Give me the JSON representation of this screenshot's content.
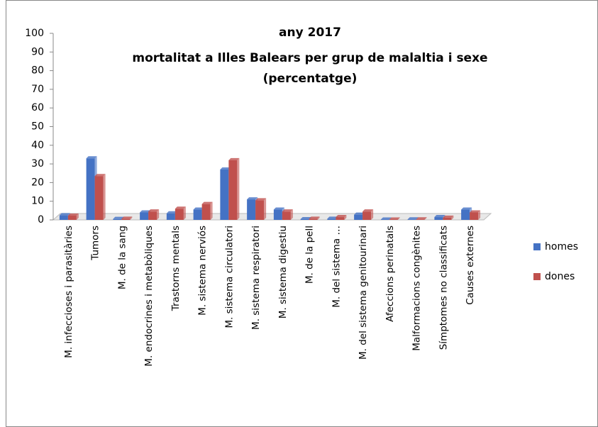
{
  "chart_data": {
    "type": "bar",
    "title": [
      "any 2017",
      "mortalitat a Illes Balears per grup de malaltia i sexe",
      "(percentatge)"
    ],
    "categories": [
      "M. infeccioses i parasitàries",
      "Tumors",
      "M. de la sang",
      "M. endocrines i metabòliques",
      "Trastorns  mentals",
      "M. sistema nerviós",
      "M. sistema circulatori",
      "M. sistema respiratori",
      "M. sistema digestiu",
      "M. de la pell",
      "M. del sistema …",
      "M. del sistema genitourinari",
      "Afeccions perinatals",
      "Malformacions congènites",
      "Símptomes no classificats",
      "Causes externes"
    ],
    "series": [
      {
        "name": "homes",
        "color": "#4472c4",
        "values": [
          2.5,
          33,
          0.5,
          4,
          3.5,
          5.5,
          27,
          11,
          5.5,
          0.4,
          0.6,
          2.8,
          0.2,
          0.3,
          1.5,
          5.5
        ]
      },
      {
        "name": "dones",
        "color": "#c0504d",
        "values": [
          2.3,
          23.5,
          0.6,
          4.5,
          6,
          8.5,
          32,
          10.5,
          4.5,
          0.6,
          1.5,
          4.5,
          0.2,
          0.3,
          1.2,
          4
        ]
      }
    ],
    "ylim": [
      0,
      100
    ],
    "yticks": [
      0,
      10,
      20,
      30,
      40,
      50,
      60,
      70,
      80,
      90,
      100
    ],
    "legend": "right"
  }
}
